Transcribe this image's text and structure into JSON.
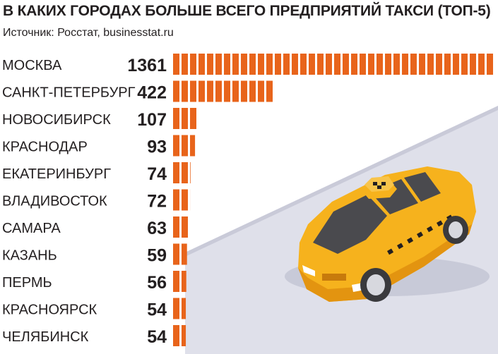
{
  "header": {
    "title": "В КАКИХ ГОРОДАХ БОЛЬШЕ ВСЕГО ПРЕДПРИЯТИЙ ТАКСИ (ТОП-5)",
    "source": "Источник: Росстат, businesstat.ru"
  },
  "colors": {
    "bar": "#e8641b",
    "text": "#231f20",
    "road": "#dfe0ea",
    "car_body": "#f6b21d",
    "car_shadow": "#e39410",
    "car_window": "#4a4a4e"
  },
  "illustration": "taxi-car-on-road",
  "chart_data": {
    "type": "bar",
    "orientation": "horizontal",
    "title": "В КАКИХ ГОРОДАХ БОЛЬШЕ ВСЕГО ПРЕДПРИЯТИЙ ТАКСИ (ТОП-5)",
    "categories": [
      "МОСКВА",
      "САНКТ-ПЕТЕРБУРГ",
      "НОВОСИБИРСК",
      "КРАСНОДАР",
      "ЕКАТЕРИНБУРГ",
      "ВЛАДИВОСТОК",
      "САМАРА",
      "КАЗАНЬ",
      "ПЕРМЬ",
      "КРАСНОЯРСК",
      "ЧЕЛЯБИНСК"
    ],
    "values": [
      1361,
      422,
      107,
      93,
      74,
      72,
      63,
      59,
      56,
      54,
      54
    ],
    "grid": false,
    "legend": "none"
  }
}
